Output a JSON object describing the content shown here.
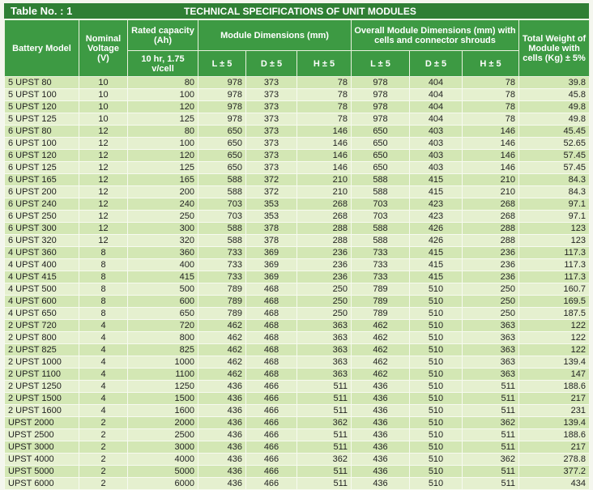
{
  "header": {
    "table_no": "Table No. : 1",
    "title": "TECHNICAL SPECIFICATIONS  OF UNIT MODULES"
  },
  "table": {
    "columns": {
      "battery_model": "Battery Model",
      "nominal_voltage": "Nominal Voltage (V)",
      "rated_capacity": "Rated capacity (Ah)",
      "rated_capacity_sub": "10 hr, 1.75 v/cell",
      "module_dimensions": "Module Dimensions (mm)",
      "module_sub": [
        "L ± 5",
        "D ± 5",
        "H ± 5"
      ],
      "overall_dimensions": "Overall Module Dimensions (mm) with cells and connector shrouds",
      "overall_sub": [
        "L ± 5",
        "D ± 5",
        "H ± 5"
      ],
      "total_weight": "Total Weight of Module with cells (Kg) ± 5%"
    },
    "rows": [
      [
        "5 UPST 80",
        "10",
        "80",
        "978",
        "373",
        "78",
        "978",
        "404",
        "78",
        "39.8"
      ],
      [
        "5 UPST 100",
        "10",
        "100",
        "978",
        "373",
        "78",
        "978",
        "404",
        "78",
        "45.8"
      ],
      [
        "5 UPST 120",
        "10",
        "120",
        "978",
        "373",
        "78",
        "978",
        "404",
        "78",
        "49.8"
      ],
      [
        "5 UPST 125",
        "10",
        "125",
        "978",
        "373",
        "78",
        "978",
        "404",
        "78",
        "49.8"
      ],
      [
        "6 UPST 80",
        "12",
        "80",
        "650",
        "373",
        "146",
        "650",
        "403",
        "146",
        "45.45"
      ],
      [
        "6 UPST 100",
        "12",
        "100",
        "650",
        "373",
        "146",
        "650",
        "403",
        "146",
        "52.65"
      ],
      [
        "6 UPST 120",
        "12",
        "120",
        "650",
        "373",
        "146",
        "650",
        "403",
        "146",
        "57.45"
      ],
      [
        "6 UPST 125",
        "12",
        "125",
        "650",
        "373",
        "146",
        "650",
        "403",
        "146",
        "57.45"
      ],
      [
        "6 UPST 165",
        "12",
        "165",
        "588",
        "372",
        "210",
        "588",
        "415",
        "210",
        "84.3"
      ],
      [
        "6 UPST 200",
        "12",
        "200",
        "588",
        "372",
        "210",
        "588",
        "415",
        "210",
        "84.3"
      ],
      [
        "6 UPST 240",
        "12",
        "240",
        "703",
        "353",
        "268",
        "703",
        "423",
        "268",
        "97.1"
      ],
      [
        "6 UPST 250",
        "12",
        "250",
        "703",
        "353",
        "268",
        "703",
        "423",
        "268",
        "97.1"
      ],
      [
        "6 UPST 300",
        "12",
        "300",
        "588",
        "378",
        "288",
        "588",
        "426",
        "288",
        "123"
      ],
      [
        "6 UPST 320",
        "12",
        "320",
        "588",
        "378",
        "288",
        "588",
        "426",
        "288",
        "123"
      ],
      [
        "4 UPST 360",
        "8",
        "360",
        "733",
        "369",
        "236",
        "733",
        "415",
        "236",
        "117.3"
      ],
      [
        "4 UPST 400",
        "8",
        "400",
        "733",
        "369",
        "236",
        "733",
        "415",
        "236",
        "117.3"
      ],
      [
        "4 UPST 415",
        "8",
        "415",
        "733",
        "369",
        "236",
        "733",
        "415",
        "236",
        "117.3"
      ],
      [
        "4 UPST 500",
        "8",
        "500",
        "789",
        "468",
        "250",
        "789",
        "510",
        "250",
        "160.7"
      ],
      [
        "4 UPST 600",
        "8",
        "600",
        "789",
        "468",
        "250",
        "789",
        "510",
        "250",
        "169.5"
      ],
      [
        "4 UPST 650",
        "8",
        "650",
        "789",
        "468",
        "250",
        "789",
        "510",
        "250",
        "187.5"
      ],
      [
        "2 UPST 720",
        "4",
        "720",
        "462",
        "468",
        "363",
        "462",
        "510",
        "363",
        "122"
      ],
      [
        "2 UPST 800",
        "4",
        "800",
        "462",
        "468",
        "363",
        "462",
        "510",
        "363",
        "122"
      ],
      [
        "2 UPST 825",
        "4",
        "825",
        "462",
        "468",
        "363",
        "462",
        "510",
        "363",
        "122"
      ],
      [
        "2 UPST 1000",
        "4",
        "1000",
        "462",
        "468",
        "363",
        "462",
        "510",
        "363",
        "139.4"
      ],
      [
        "2 UPST 1100",
        "4",
        "1100",
        "462",
        "468",
        "363",
        "462",
        "510",
        "363",
        "147"
      ],
      [
        "2 UPST 1250",
        "4",
        "1250",
        "436",
        "466",
        "511",
        "436",
        "510",
        "511",
        "188.6"
      ],
      [
        "2 UPST 1500",
        "4",
        "1500",
        "436",
        "466",
        "511",
        "436",
        "510",
        "511",
        "217"
      ],
      [
        "2 UPST 1600",
        "4",
        "1600",
        "436",
        "466",
        "511",
        "436",
        "510",
        "511",
        "231"
      ],
      [
        "UPST 2000",
        "2",
        "2000",
        "436",
        "466",
        "362",
        "436",
        "510",
        "362",
        "139.4"
      ],
      [
        "UPST 2500",
        "2",
        "2500",
        "436",
        "466",
        "511",
        "436",
        "510",
        "511",
        "188.6"
      ],
      [
        "UPST 3000",
        "2",
        "3000",
        "436",
        "466",
        "511",
        "436",
        "510",
        "511",
        "217"
      ],
      [
        "UPST 4000",
        "2",
        "4000",
        "436",
        "466",
        "362",
        "436",
        "510",
        "362",
        "278.8"
      ],
      [
        "UPST 5000",
        "2",
        "5000",
        "436",
        "466",
        "511",
        "436",
        "510",
        "511",
        "377.2"
      ],
      [
        "UPST 6000",
        "2",
        "6000",
        "436",
        "466",
        "511",
        "436",
        "510",
        "511",
        "434"
      ]
    ]
  }
}
